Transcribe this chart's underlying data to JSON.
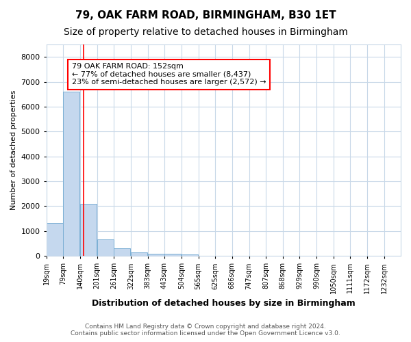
{
  "title1": "79, OAK FARM ROAD, BIRMINGHAM, B30 1ET",
  "title2": "Size of property relative to detached houses in Birmingham",
  "xlabel": "Distribution of detached houses by size in Birmingham",
  "ylabel": "Number of detached properties",
  "footer1": "Contains HM Land Registry data © Crown copyright and database right 2024.",
  "footer2": "Contains public sector information licensed under the Open Government Licence v3.0.",
  "bin_edges": [
    19,
    79,
    140,
    201,
    261,
    322,
    383,
    443,
    504,
    565,
    625,
    686,
    747,
    807,
    868,
    929,
    990,
    1050,
    1111,
    1172,
    1232
  ],
  "bar_heights": [
    1330,
    6600,
    2090,
    650,
    300,
    150,
    100,
    100,
    50,
    0,
    0,
    0,
    0,
    0,
    0,
    0,
    0,
    0,
    0,
    0
  ],
  "bar_color": "#c5d8ee",
  "bar_edge_color": "#7bafd4",
  "red_line_x": 152,
  "ylim": [
    0,
    8500
  ],
  "yticks": [
    0,
    1000,
    2000,
    3000,
    4000,
    5000,
    6000,
    7000,
    8000
  ],
  "annotation_text": "79 OAK FARM ROAD: 152sqm\n← 77% of detached houses are smaller (8,437)\n23% of semi-detached houses are larger (2,572) →",
  "annotation_box_color": "white",
  "annotation_box_edge": "red",
  "grid_color": "#c8d8e8",
  "background_color": "#ffffff",
  "plot_bg_color": "#ffffff",
  "tick_labels": [
    "19sqm",
    "79sqm",
    "140sqm",
    "201sqm",
    "261sqm",
    "322sqm",
    "383sqm",
    "443sqm",
    "504sqm",
    "565sqm",
    "625sqm",
    "686sqm",
    "747sqm",
    "807sqm",
    "868sqm",
    "929sqm",
    "990sqm",
    "1050sqm",
    "1111sqm",
    "1172sqm",
    "1232sqm"
  ],
  "title1_fontsize": 11,
  "title2_fontsize": 10,
  "xlabel_fontsize": 9,
  "ylabel_fontsize": 8,
  "footer_fontsize": 6.5,
  "annotation_fontsize": 8
}
